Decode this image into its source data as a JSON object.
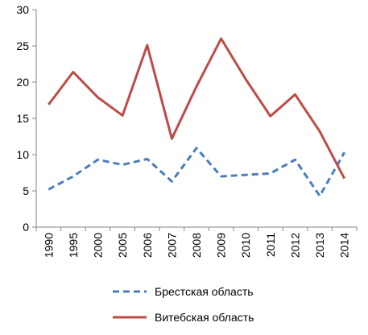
{
  "chart_data": {
    "type": "line",
    "title": "",
    "xlabel": "",
    "ylabel": "",
    "categories": [
      "1990",
      "1995",
      "2000",
      "2005",
      "2006",
      "2007",
      "2008",
      "2009",
      "2010",
      "2011",
      "2012",
      "2013",
      "2014"
    ],
    "ylim": [
      0,
      30
    ],
    "yticks": [
      "0",
      "5",
      "10",
      "15",
      "20",
      "25",
      "30"
    ],
    "grid": false,
    "legend_position": "bottom",
    "series": [
      {
        "name": "Брестская область",
        "color": "#4a7ebb",
        "style": "dashed",
        "values": [
          5.2,
          7.0,
          9.3,
          8.6,
          9.4,
          6.3,
          10.9,
          7.0,
          7.2,
          7.4,
          9.3,
          4.3,
          10.3
        ]
      },
      {
        "name": "Витебская область",
        "color": "#be4b48",
        "style": "solid",
        "values": [
          16.9,
          21.4,
          17.9,
          15.4,
          25.1,
          12.2,
          19.4,
          26.0,
          20.4,
          15.3,
          18.3,
          13.2,
          6.7
        ]
      }
    ]
  }
}
